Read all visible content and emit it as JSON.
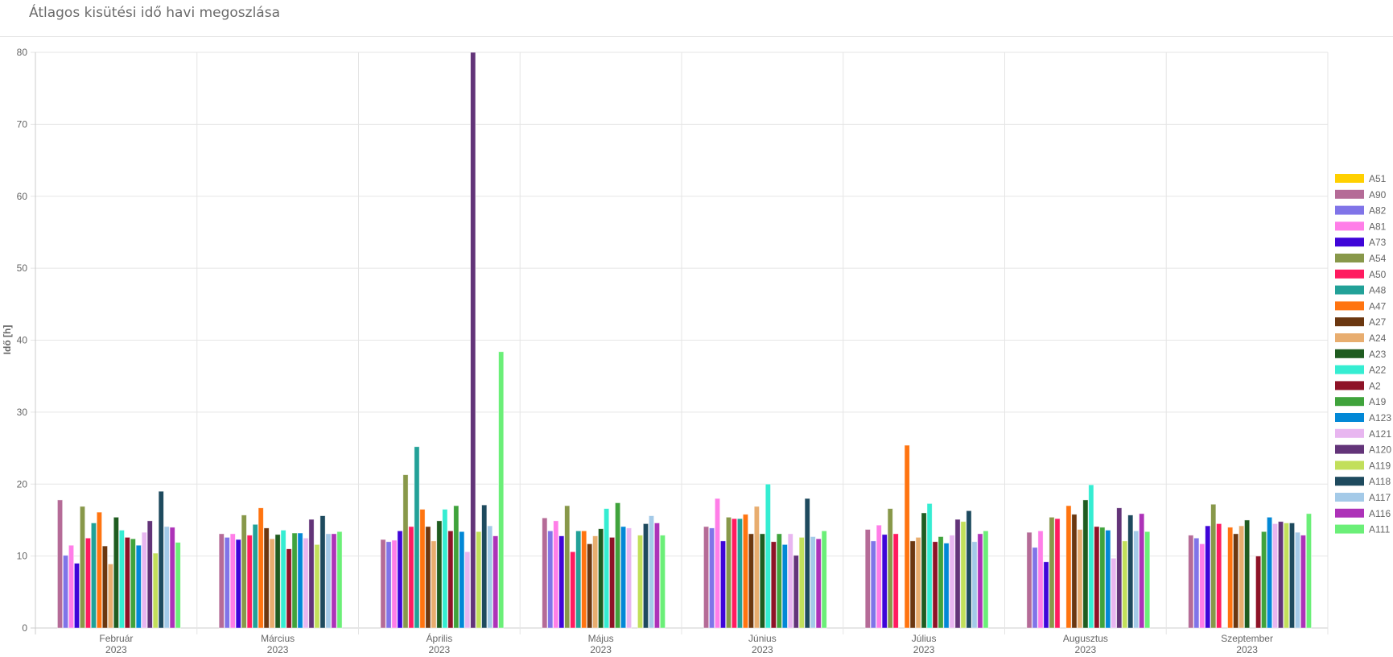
{
  "header": {
    "title": "Átlagos kisütési idő havi megoszlása"
  },
  "chart_data": {
    "type": "bar",
    "title": "",
    "xlabel": "",
    "ylabel": "Idő [h]",
    "ylim": [
      0,
      80
    ],
    "yticks": [
      0,
      10,
      20,
      30,
      40,
      50,
      60,
      70,
      80
    ],
    "grid": true,
    "legend_position": "right",
    "categories": [
      {
        "month": "Február",
        "year": "2023"
      },
      {
        "month": "Március",
        "year": "2023"
      },
      {
        "month": "Április",
        "year": "2023"
      },
      {
        "month": "Május",
        "year": "2023"
      },
      {
        "month": "Június",
        "year": "2023"
      },
      {
        "month": "Július",
        "year": "2023"
      },
      {
        "month": "Augusztus",
        "year": "2023"
      },
      {
        "month": "Szeptember",
        "year": "2023"
      }
    ],
    "series": [
      {
        "name": "A51",
        "color": "#FFD000",
        "values": [
          null,
          null,
          null,
          null,
          null,
          null,
          null,
          null
        ]
      },
      {
        "name": "A90",
        "color": "#B56B97",
        "values": [
          17.8,
          13.1,
          12.3,
          15.3,
          14.1,
          13.7,
          13.3,
          12.9
        ]
      },
      {
        "name": "A82",
        "color": "#8074E8",
        "values": [
          10.1,
          12.6,
          12.0,
          13.5,
          13.9,
          12.1,
          11.2,
          12.5
        ]
      },
      {
        "name": "A81",
        "color": "#FF7EE8",
        "values": [
          11.5,
          13.1,
          12.2,
          14.9,
          18.0,
          14.3,
          13.5,
          11.7
        ]
      },
      {
        "name": "A73",
        "color": "#3F05D8",
        "values": [
          9.0,
          12.3,
          13.5,
          12.8,
          12.1,
          13.0,
          9.2,
          14.2
        ]
      },
      {
        "name": "A54",
        "color": "#88984A",
        "values": [
          16.9,
          15.7,
          21.3,
          17.0,
          15.4,
          16.6,
          15.4,
          17.2
        ]
      },
      {
        "name": "A50",
        "color": "#FF1B60",
        "values": [
          12.5,
          12.9,
          14.1,
          10.6,
          15.2,
          13.1,
          15.2,
          14.5
        ]
      },
      {
        "name": "A48",
        "color": "#22A198",
        "values": [
          14.6,
          14.4,
          25.2,
          13.5,
          15.2,
          null,
          null,
          null
        ]
      },
      {
        "name": "A47",
        "color": "#FF7410",
        "values": [
          16.1,
          16.7,
          16.5,
          13.5,
          15.8,
          25.4,
          17.0,
          14.0
        ]
      },
      {
        "name": "A27",
        "color": "#6B3710",
        "values": [
          11.4,
          13.9,
          14.1,
          11.7,
          13.1,
          12.1,
          15.8,
          13.1
        ]
      },
      {
        "name": "A24",
        "color": "#E8AD6F",
        "values": [
          8.9,
          12.4,
          12.1,
          12.8,
          16.9,
          12.6,
          13.7,
          14.2
        ]
      },
      {
        "name": "A23",
        "color": "#1F5C20",
        "values": [
          15.4,
          13.0,
          14.9,
          13.8,
          13.1,
          16.0,
          17.8,
          15.0
        ]
      },
      {
        "name": "A22",
        "color": "#35EDD2",
        "values": [
          13.6,
          13.6,
          16.5,
          16.6,
          20.0,
          17.3,
          19.9,
          null
        ]
      },
      {
        "name": "A2",
        "color": "#8E1327",
        "values": [
          12.6,
          11.0,
          13.5,
          12.6,
          12.0,
          12.0,
          14.1,
          10.0
        ]
      },
      {
        "name": "A19",
        "color": "#40A33C",
        "values": [
          12.4,
          13.2,
          17.0,
          17.4,
          13.1,
          12.7,
          14.0,
          13.4
        ]
      },
      {
        "name": "A123",
        "color": "#0288D6",
        "values": [
          11.5,
          13.2,
          13.4,
          14.1,
          11.6,
          11.8,
          13.6,
          15.4
        ]
      },
      {
        "name": "A121",
        "color": "#E8B6F0",
        "values": [
          13.3,
          12.5,
          10.6,
          13.9,
          13.1,
          12.9,
          9.7,
          14.5
        ]
      },
      {
        "name": "A120",
        "color": "#633479",
        "values": [
          14.9,
          15.1,
          80.0,
          null,
          10.1,
          15.1,
          16.7,
          14.8
        ]
      },
      {
        "name": "A119",
        "color": "#C2DF5B",
        "values": [
          10.4,
          11.6,
          13.4,
          12.9,
          12.6,
          14.8,
          12.1,
          14.6
        ]
      },
      {
        "name": "A118",
        "color": "#1E4A5E",
        "values": [
          19.0,
          15.6,
          17.1,
          14.5,
          18.0,
          16.3,
          15.7,
          14.6
        ]
      },
      {
        "name": "A117",
        "color": "#A4CAE8",
        "values": [
          14.1,
          13.1,
          14.2,
          15.6,
          12.7,
          12.0,
          13.5,
          13.3
        ]
      },
      {
        "name": "A116",
        "color": "#AD32B8",
        "values": [
          14.0,
          13.1,
          12.8,
          14.6,
          12.4,
          13.1,
          15.9,
          12.9
        ]
      },
      {
        "name": "A111",
        "color": "#6BEF78",
        "values": [
          11.9,
          13.4,
          38.4,
          12.9,
          13.5,
          13.5,
          13.4,
          15.9
        ]
      }
    ]
  }
}
